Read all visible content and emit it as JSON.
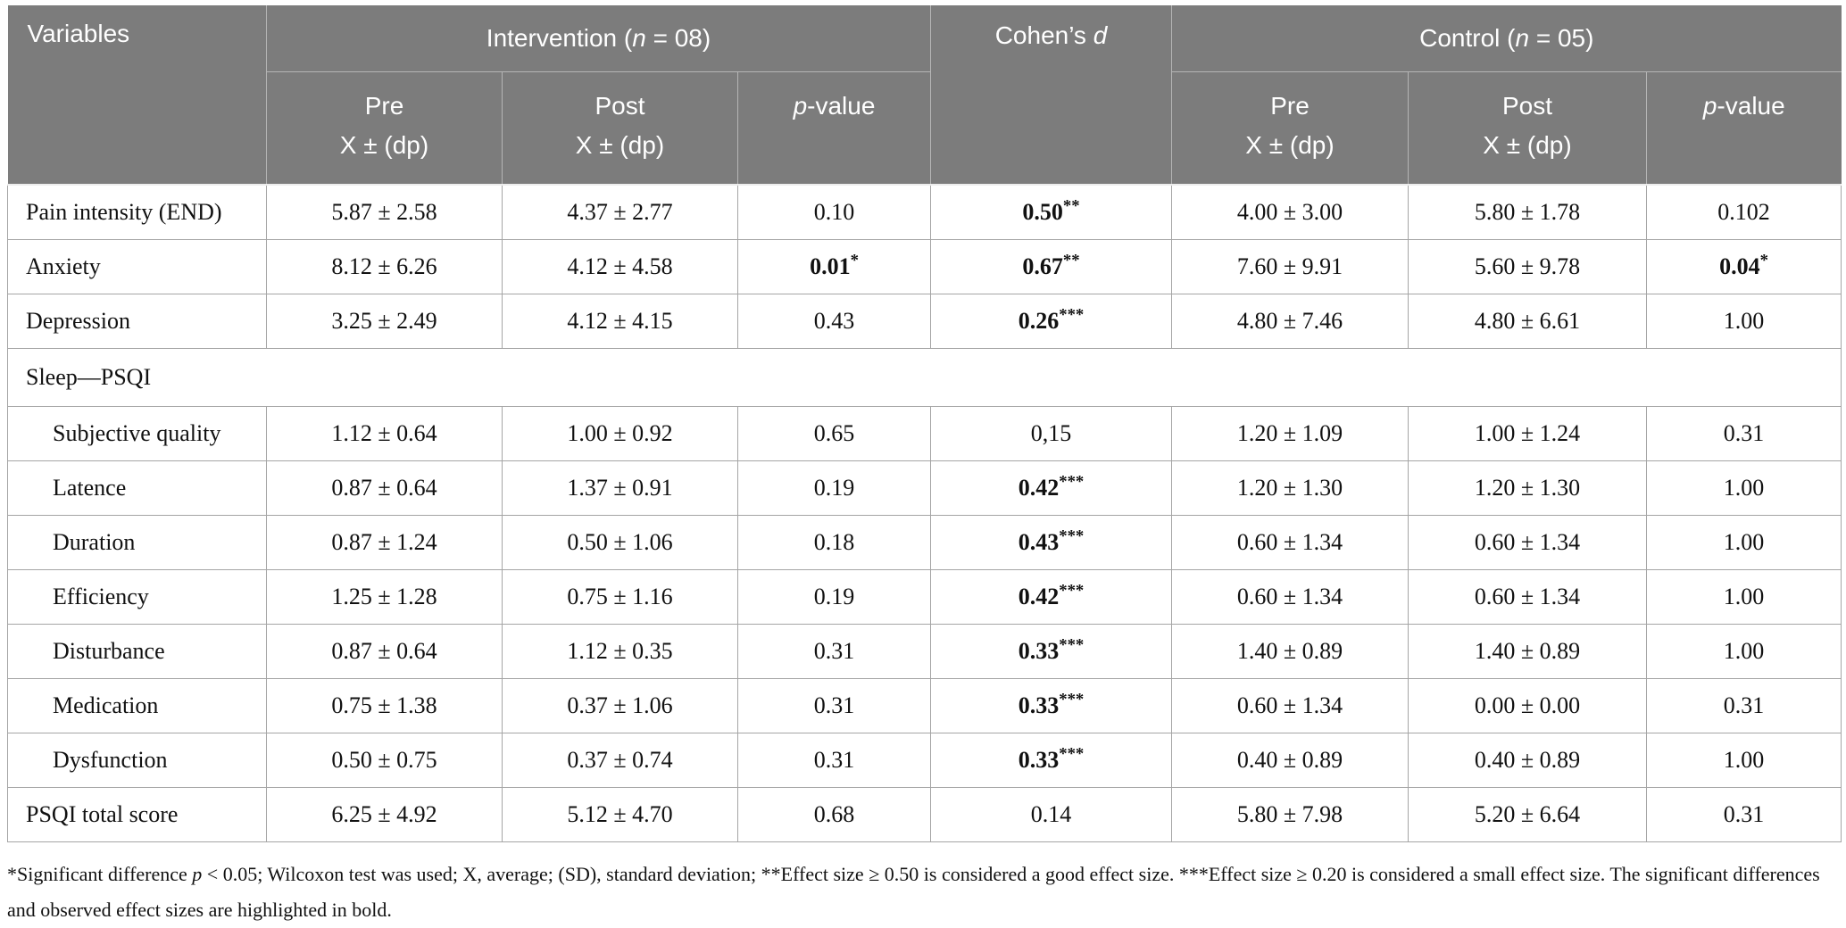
{
  "colors": {
    "header_background": "#7c7c7c",
    "header_text": "#ffffff",
    "header_divider": "#b5b5b5",
    "body_border": "#a5a5a5",
    "body_text": "#111111"
  },
  "table": {
    "header": {
      "variables": "Variables",
      "intervention": {
        "prefix": "Intervention (",
        "n": "n",
        "suffix": " = 08)"
      },
      "cohens": {
        "prefix": "Cohen’s ",
        "d": "d"
      },
      "control": {
        "prefix": "Control (",
        "n": "n",
        "suffix": " = 05)"
      },
      "sub": {
        "pre": "Pre",
        "post": "Post",
        "stat": "X ± (dp)",
        "pvalue": {
          "p": "p",
          "suffix": "-value"
        }
      }
    },
    "rows": [
      {
        "label": "Pain intensity (END)",
        "cells": [
          {
            "v": "5.87 ± 2.58"
          },
          {
            "v": "4.37 ± 2.77"
          },
          {
            "v": "0.10"
          },
          {
            "v": "0.50",
            "a": "**",
            "b": true
          },
          {
            "v": "4.00 ± 3.00"
          },
          {
            "v": "5.80 ± 1.78"
          },
          {
            "v": "0.102"
          }
        ]
      },
      {
        "label": "Anxiety",
        "cells": [
          {
            "v": "8.12 ± 6.26"
          },
          {
            "v": "4.12 ± 4.58"
          },
          {
            "v": "0.01",
            "a": "*",
            "b": true
          },
          {
            "v": "0.67",
            "a": "**",
            "b": true
          },
          {
            "v": "7.60 ± 9.91"
          },
          {
            "v": "5.60 ± 9.78"
          },
          {
            "v": "0.04",
            "a": "*",
            "b": true
          }
        ]
      },
      {
        "label": "Depression",
        "cells": [
          {
            "v": "3.25 ± 2.49"
          },
          {
            "v": "4.12 ± 4.15"
          },
          {
            "v": "0.43"
          },
          {
            "v": "0.26",
            "a": "***",
            "b": true
          },
          {
            "v": "4.80 ± 7.46"
          },
          {
            "v": "4.80 ± 6.61"
          },
          {
            "v": "1.00"
          }
        ]
      },
      {
        "label": "Sleep—PSQI",
        "section": true
      },
      {
        "label": "Subjective quality",
        "indent": true,
        "cells": [
          {
            "v": "1.12 ± 0.64"
          },
          {
            "v": "1.00 ± 0.92"
          },
          {
            "v": "0.65"
          },
          {
            "v": "0,15"
          },
          {
            "v": "1.20 ± 1.09"
          },
          {
            "v": "1.00 ± 1.24"
          },
          {
            "v": "0.31"
          }
        ]
      },
      {
        "label": "Latence",
        "indent": true,
        "cells": [
          {
            "v": "0.87 ± 0.64"
          },
          {
            "v": "1.37 ± 0.91"
          },
          {
            "v": "0.19"
          },
          {
            "v": "0.42",
            "a": "***",
            "b": true
          },
          {
            "v": "1.20 ± 1.30"
          },
          {
            "v": "1.20 ± 1.30"
          },
          {
            "v": "1.00"
          }
        ]
      },
      {
        "label": "Duration",
        "indent": true,
        "cells": [
          {
            "v": "0.87 ± 1.24"
          },
          {
            "v": "0.50 ± 1.06"
          },
          {
            "v": "0.18"
          },
          {
            "v": "0.43",
            "a": "***",
            "b": true
          },
          {
            "v": "0.60 ± 1.34"
          },
          {
            "v": "0.60 ± 1.34"
          },
          {
            "v": "1.00"
          }
        ]
      },
      {
        "label": "Efficiency",
        "indent": true,
        "cells": [
          {
            "v": "1.25 ± 1.28"
          },
          {
            "v": "0.75 ± 1.16"
          },
          {
            "v": "0.19"
          },
          {
            "v": "0.42",
            "a": "***",
            "b": true
          },
          {
            "v": "0.60 ± 1.34"
          },
          {
            "v": "0.60 ± 1.34"
          },
          {
            "v": "1.00"
          }
        ]
      },
      {
        "label": "Disturbance",
        "indent": true,
        "cells": [
          {
            "v": "0.87 ± 0.64"
          },
          {
            "v": "1.12 ± 0.35"
          },
          {
            "v": "0.31"
          },
          {
            "v": "0.33",
            "a": "***",
            "b": true
          },
          {
            "v": "1.40 ± 0.89"
          },
          {
            "v": "1.40 ± 0.89"
          },
          {
            "v": "1.00"
          }
        ]
      },
      {
        "label": "Medication",
        "indent": true,
        "cells": [
          {
            "v": "0.75 ± 1.38"
          },
          {
            "v": "0.37 ± 1.06"
          },
          {
            "v": "0.31"
          },
          {
            "v": "0.33",
            "a": "***",
            "b": true
          },
          {
            "v": "0.60 ± 1.34"
          },
          {
            "v": "0.00 ± 0.00"
          },
          {
            "v": "0.31"
          }
        ]
      },
      {
        "label": "Dysfunction",
        "indent": true,
        "cells": [
          {
            "v": "0.50 ± 0.75"
          },
          {
            "v": "0.37 ± 0.74"
          },
          {
            "v": "0.31"
          },
          {
            "v": "0.33",
            "a": "***",
            "b": true
          },
          {
            "v": "0.40 ± 0.89"
          },
          {
            "v": "0.40 ± 0.89"
          },
          {
            "v": "1.00"
          }
        ]
      },
      {
        "label": "PSQI total score",
        "cells": [
          {
            "v": "6.25 ± 4.92"
          },
          {
            "v": "5.12 ± 4.70"
          },
          {
            "v": "0.68"
          },
          {
            "v": "0.14"
          },
          {
            "v": "5.80 ± 7.98"
          },
          {
            "v": "5.20 ± 6.64"
          },
          {
            "v": "0.31"
          }
        ]
      }
    ]
  },
  "footnote": {
    "part1": "*Significant difference ",
    "italic_p": "p",
    "part2": " < 0.05; Wilcoxon test was used; X, average; (SD), standard deviation; **Effect size ≥ 0.50 is considered a good effect size. ***Effect size ≥ 0.20 is considered a small effect size. The significant differences and observed effect sizes are highlighted in bold."
  }
}
